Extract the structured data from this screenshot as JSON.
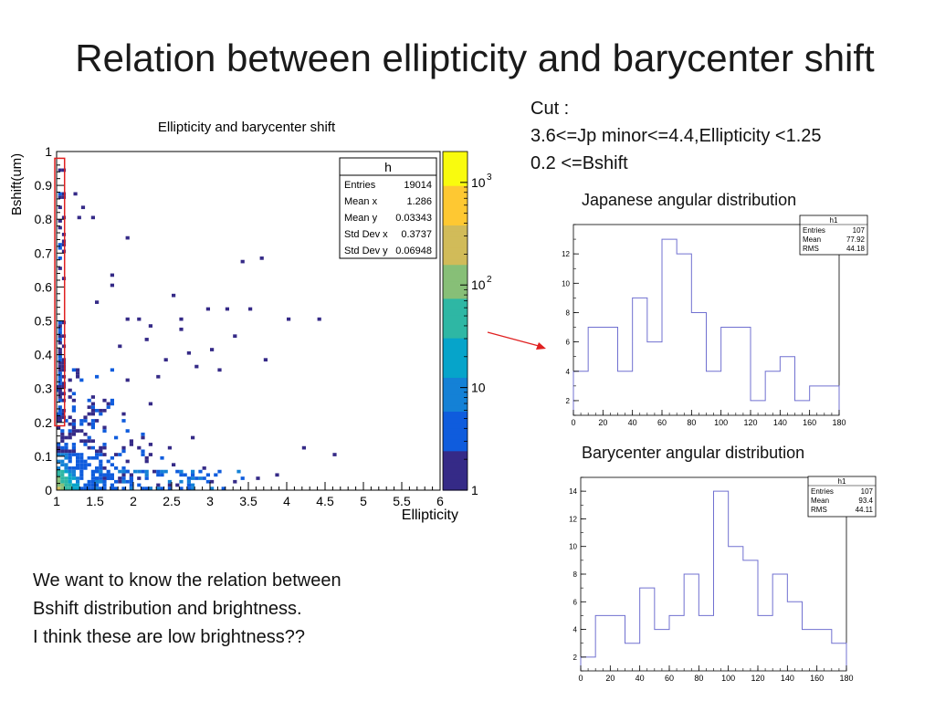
{
  "slide": {
    "title": "Relation between ellipticity and barycenter shift",
    "cut_lines": [
      "Cut :",
      "3.6<=Jp minor<=4.4,Ellipticity <1.25",
      "0.2 <=Bshift"
    ],
    "note_lines": [
      "We want to know the relation between",
      "Bshift distribution and brightness.",
      "I think these are low brightness??"
    ],
    "japanese_label": "Japanese angular distribution",
    "barycenter_label": "Barycenter angular distribution"
  },
  "colors": {
    "hist_line": "#7070d0",
    "highlight_box": "#e02020",
    "arrow": "#e02020",
    "palette": [
      "#352a87",
      "#0f5cdd",
      "#1481d6",
      "#06a4ca",
      "#2eb7a4",
      "#87bf77",
      "#d1bb59",
      "#fec832",
      "#f9fb0e"
    ]
  },
  "chart_data": [
    {
      "id": "scatter",
      "type": "heatmap",
      "title": "Ellipticity and barycenter shift",
      "xlabel": "Ellipticity",
      "ylabel": "Bshift(um)",
      "xlim": [
        1,
        6
      ],
      "ylim": [
        0,
        1
      ],
      "xticks": [
        "1",
        "1.5",
        "2",
        "2.5",
        "3",
        "3.5",
        "4",
        "4.5",
        "5",
        "5.5",
        "6"
      ],
      "yticks": [
        "0",
        "0.1",
        "0.2",
        "0.3",
        "0.4",
        "0.5",
        "0.6",
        "0.7",
        "0.8",
        "0.9",
        "1"
      ],
      "colorbar": {
        "scale": "log",
        "range": [
          1,
          2000
        ],
        "tick_labels": [
          "1",
          "10",
          "10",
          "10"
        ],
        "tick_exponents": [
          "",
          "",
          "2",
          "3"
        ]
      },
      "stats": {
        "name": "h",
        "rows": [
          {
            "label": "Entries",
            "value": "19014"
          },
          {
            "label": "Mean x",
            "value": "1.286"
          },
          {
            "label": "Mean y",
            "value": "0.03343"
          },
          {
            "label": "Std Dev x",
            "value": "0.3737"
          },
          {
            "label": "Std Dev y",
            "value": "0.06948"
          }
        ]
      },
      "highlight": {
        "x_range": [
          1,
          1.08
        ],
        "y_range": [
          0.19,
          0.98
        ]
      },
      "sparse_points": [
        [
          1.22,
          0.87
        ],
        [
          1.32,
          0.83
        ],
        [
          1.27,
          0.8
        ],
        [
          1.45,
          0.8
        ],
        [
          1.9,
          0.74
        ],
        [
          3.4,
          0.67
        ],
        [
          3.65,
          0.68
        ],
        [
          1.7,
          0.63
        ],
        [
          2.5,
          0.57
        ],
        [
          2.95,
          0.53
        ],
        [
          3.2,
          0.53
        ],
        [
          3.5,
          0.53
        ],
        [
          4.0,
          0.5
        ],
        [
          4.4,
          0.5
        ],
        [
          3.3,
          0.45
        ],
        [
          3.0,
          0.41
        ],
        [
          2.7,
          0.4
        ],
        [
          2.4,
          0.38
        ],
        [
          2.8,
          0.36
        ],
        [
          1.7,
          0.6
        ],
        [
          1.9,
          0.5
        ],
        [
          2.2,
          0.48
        ],
        [
          2.6,
          0.5
        ],
        [
          3.7,
          0.38
        ],
        [
          4.2,
          0.12
        ],
        [
          4.6,
          0.1
        ],
        [
          2.9,
          0.06
        ],
        [
          3.0,
          0.02
        ],
        [
          3.3,
          0.02
        ],
        [
          2.6,
          0.47
        ],
        [
          1.5,
          0.55
        ],
        [
          1.8,
          0.42
        ],
        [
          3.1,
          0.35
        ],
        [
          2.3,
          0.33
        ],
        [
          2.05,
          0.5
        ],
        [
          2.15,
          0.44
        ],
        [
          2.75,
          0.15
        ],
        [
          3.6,
          0.03
        ],
        [
          2.45,
          0.12
        ],
        [
          3.85,
          0.04
        ]
      ]
    },
    {
      "id": "h_jp",
      "type": "histogram",
      "name": "h1",
      "stats": [
        {
          "label": "Entries",
          "value": "107"
        },
        {
          "label": "Mean",
          "value": "77.92"
        },
        {
          "label": "RMS",
          "value": "44.18"
        }
      ],
      "xlim": [
        0,
        180
      ],
      "ylim": [
        1,
        14
      ],
      "bin_width": 10,
      "xticks": [
        "0",
        "20",
        "40",
        "60",
        "80",
        "100",
        "120",
        "140",
        "160",
        "180"
      ],
      "yticks": [
        2,
        4,
        6,
        8,
        10,
        12
      ],
      "values": [
        4,
        7,
        7,
        4,
        9,
        6,
        13,
        12,
        8,
        4,
        7,
        7,
        2,
        4,
        5,
        2,
        3,
        3
      ]
    },
    {
      "id": "h_bary",
      "type": "histogram",
      "name": "h1",
      "stats": [
        {
          "label": "Entries",
          "value": "107"
        },
        {
          "label": "Mean",
          "value": "93.4"
        },
        {
          "label": "RMS",
          "value": "44.11"
        }
      ],
      "xlim": [
        0,
        180
      ],
      "ylim": [
        1,
        15
      ],
      "bin_width": 10,
      "xticks": [
        "0",
        "20",
        "40",
        "60",
        "80",
        "100",
        "120",
        "140",
        "160",
        "180"
      ],
      "yticks": [
        2,
        4,
        6,
        8,
        10,
        12,
        14
      ],
      "values": [
        2,
        5,
        5,
        3,
        7,
        4,
        5,
        8,
        5,
        14,
        10,
        9,
        5,
        8,
        6,
        4,
        4,
        3
      ]
    }
  ]
}
